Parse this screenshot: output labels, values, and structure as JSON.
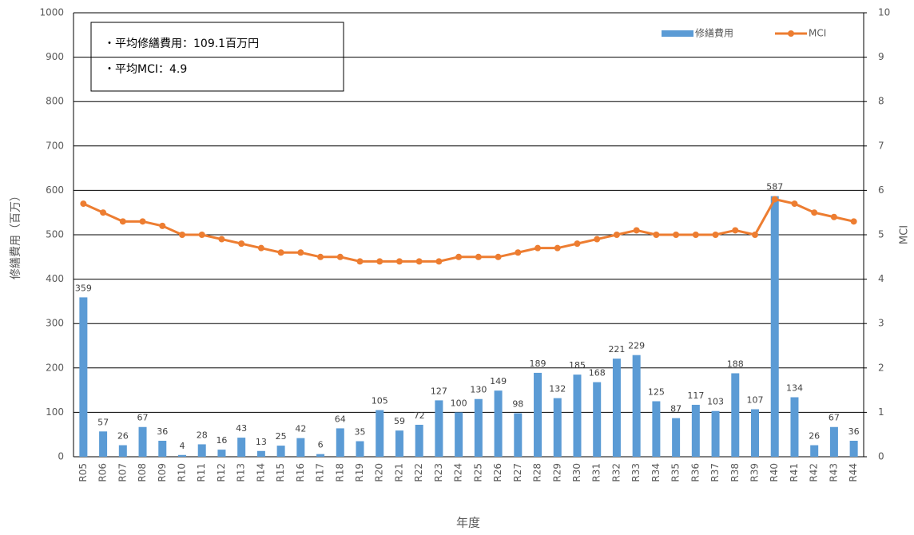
{
  "chart_data": {
    "type": "bar_line",
    "annotations": [
      "・平均修繕費用：109.1百万円",
      "・平均MCI：4.9"
    ],
    "x_label": "年度",
    "y_label": "修繕費用（百万）",
    "y2_label": "MCI",
    "categories": [
      "R05",
      "R06",
      "R07",
      "R08",
      "R09",
      "R10",
      "R11",
      "R12",
      "R13",
      "R14",
      "R15",
      "R16",
      "R17",
      "R18",
      "R19",
      "R20",
      "R21",
      "R22",
      "R23",
      "R24",
      "R25",
      "R26",
      "R27",
      "R28",
      "R29",
      "R30",
      "R31",
      "R32",
      "R33",
      "R34",
      "R35",
      "R36",
      "R37",
      "R38",
      "R39",
      "R40",
      "R41",
      "R42",
      "R43",
      "R44"
    ],
    "series": [
      {
        "name": "修繕費用",
        "color": "#5b9bd5",
        "values": [
          359,
          57,
          26,
          67,
          36,
          4,
          28,
          16,
          43,
          13,
          25,
          42,
          6,
          64,
          35,
          105,
          59,
          72,
          127,
          100,
          130,
          149,
          98,
          189,
          132,
          185,
          168,
          221,
          229,
          125,
          87,
          117,
          103,
          188,
          107,
          587,
          134,
          26,
          67,
          36
        ]
      },
      {
        "name": "MCI",
        "color": "#ed7d31",
        "axis": "y2",
        "values": [
          5.7,
          5.5,
          5.3,
          5.3,
          5.2,
          5.0,
          5.0,
          4.9,
          4.8,
          4.7,
          4.6,
          4.6,
          4.5,
          4.5,
          4.4,
          4.4,
          4.4,
          4.4,
          4.4,
          4.5,
          4.5,
          4.5,
          4.6,
          4.7,
          4.7,
          4.8,
          4.9,
          5.0,
          5.1,
          5.0,
          5.0,
          5.0,
          5.0,
          5.1,
          5.0,
          5.8,
          5.7,
          5.5,
          5.4,
          5.3
        ]
      }
    ],
    "ylim": [
      0,
      1000
    ],
    "yticks": [
      0,
      100,
      200,
      300,
      400,
      500,
      600,
      700,
      800,
      900,
      1000
    ],
    "y2lim": [
      0,
      10
    ],
    "y2ticks": [
      0,
      1,
      2,
      3,
      4,
      5,
      6,
      7,
      8,
      9,
      10
    ],
    "grid": true,
    "legend": "top-right"
  }
}
